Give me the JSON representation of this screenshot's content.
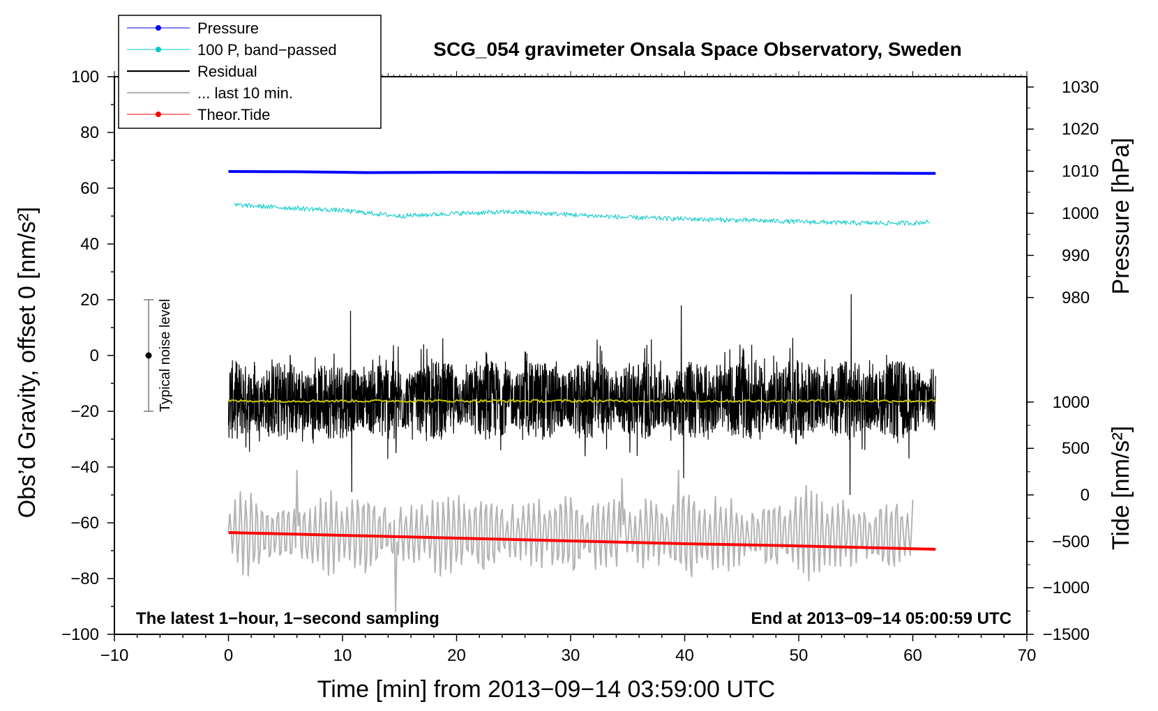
{
  "chart_data": {
    "type": "line",
    "title": "SCG_054 gravimeter Onsala Space Observatory, Sweden",
    "xlabel": "Time [min] from 2013−09−14 03:59:00 UTC",
    "ylabel_left": "Obs’d Gravity, offset 0 [nm/s²]",
    "ylabel_right_pressure": "Pressure [hPa]",
    "ylabel_right_tide": "Tide [nm/s²]",
    "xlim": [
      -10,
      70
    ],
    "ylim": [
      -100,
      100
    ],
    "pressure_axis": {
      "ticks": [
        980,
        990,
        1000,
        1010,
        1020,
        1030
      ],
      "at_left_y": [
        20.8,
        35.9,
        51.0,
        66.1,
        81.2,
        96.3
      ]
    },
    "tide_axis": {
      "ticks": [
        -1500,
        -1000,
        -500,
        0,
        500,
        1000
      ],
      "at_left_y": [
        -100,
        -83.3,
        -66.7,
        -50.0,
        -33.3,
        -16.7
      ]
    },
    "x_ticks": [
      -10,
      0,
      10,
      20,
      30,
      40,
      50,
      60,
      70
    ],
    "x_tick_labels": [
      "−10",
      "0",
      "10",
      "20",
      "30",
      "40",
      "50",
      "60",
      "70"
    ],
    "y_ticks": [
      -100,
      -80,
      -60,
      -40,
      -20,
      0,
      20,
      40,
      60,
      80,
      100
    ],
    "y_tick_labels": [
      "−100",
      "−80",
      "−60",
      "−40",
      "−20",
      "0",
      "20",
      "40",
      "60",
      "80",
      "100"
    ],
    "pressure_tick_labels": [
      "980",
      "990",
      "1000",
      "1010",
      "1020",
      "1030"
    ],
    "tide_tick_labels": [
      "−1500",
      "−1000",
      "−500",
      "0",
      "500",
      "1000"
    ],
    "series": [
      {
        "name": "Pressure",
        "color": "#0000ff",
        "x": [
          0,
          6,
          12,
          20,
          32,
          45,
          55,
          62
        ],
        "y": [
          66.0,
          65.9,
          65.6,
          65.7,
          65.6,
          65.5,
          65.4,
          65.3
        ]
      },
      {
        "name": "100 P, band−passed",
        "color": "#00c8c8",
        "x": [
          0.5,
          5,
          10,
          15,
          20,
          25,
          30,
          35,
          40,
          45,
          50,
          55,
          60,
          61.5
        ],
        "y": [
          54,
          53,
          52,
          50,
          51,
          51.5,
          50.5,
          49.5,
          49,
          48.5,
          48,
          47.5,
          47.5,
          48
        ]
      },
      {
        "name": "Residual",
        "color": "#000000",
        "x_range": [
          0,
          62
        ],
        "center": -16,
        "typical_amplitude": 12,
        "spikes": [
          {
            "x": 10.7,
            "y": 16
          },
          {
            "x": 10.8,
            "y": -49
          },
          {
            "x": 14.7,
            "y": -35
          },
          {
            "x": 39.7,
            "y": 18
          },
          {
            "x": 39.9,
            "y": -44
          },
          {
            "x": 54.6,
            "y": 22
          },
          {
            "x": 54.5,
            "y": -50
          }
        ]
      },
      {
        "name": "... last 10 min.",
        "color": "#b4b4b4",
        "x_range": [
          0,
          60
        ],
        "center": -64,
        "typical_amplitude": 14,
        "extremes": [
          {
            "x": 14.6,
            "y": -92
          },
          {
            "x": 34.5,
            "y": -44
          },
          {
            "x": 39.5,
            "y": -41
          },
          {
            "x": 6,
            "y": -35
          }
        ]
      },
      {
        "name": "Theor.Tide",
        "color": "#ff0000",
        "x": [
          0,
          10,
          20,
          30,
          40,
          50,
          62
        ],
        "y": [
          -63.5,
          -64.5,
          -65.5,
          -66.5,
          -67.5,
          -68.3,
          -69.5
        ]
      },
      {
        "name": "mean",
        "color": "#c8c800",
        "x_range": [
          0,
          62
        ],
        "y": -16.3
      }
    ],
    "legend": [
      {
        "label": "Pressure",
        "color": "#0000ff",
        "style": "line-dot"
      },
      {
        "label": "100 P, band−passed",
        "color": "#00c8c8",
        "style": "line-dot"
      },
      {
        "label": "Residual",
        "color": "#000000",
        "style": "line"
      },
      {
        "label": "... last 10 min.",
        "color": "#b4b4b4",
        "style": "line"
      },
      {
        "label": "Theor.Tide",
        "color": "#ff0000",
        "style": "line-dot"
      }
    ],
    "legend_position": "top-left",
    "noise_bar": {
      "label": "Typical noise level",
      "x": -7,
      "y_low": -20,
      "y_high": 20,
      "center": 0
    },
    "annotation_left": "The latest 1−hour, 1−second sampling",
    "annotation_right": "End at 2013−09−14 05:00:59 UTC"
  }
}
